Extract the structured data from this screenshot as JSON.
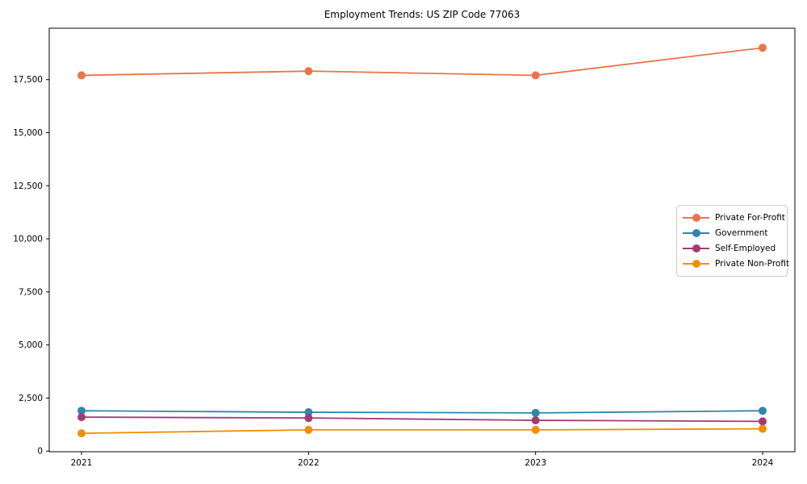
{
  "figure": {
    "background": "#ffffff",
    "axis_color": "#000000",
    "tick_label_color": "#000000"
  },
  "chart_data": {
    "type": "line",
    "title": "Employment Trends: US ZIP Code 77063",
    "categories": [
      "2021",
      "2022",
      "2023",
      "2024"
    ],
    "series": [
      {
        "name": "Private For-Profit",
        "color": "#E8764B",
        "values": [
          17700,
          17900,
          17700,
          19000
        ]
      },
      {
        "name": "Government",
        "color": "#2E86AB",
        "values": [
          1900,
          1830,
          1800,
          1900
        ]
      },
      {
        "name": "Self-Employed",
        "color": "#A23B72",
        "values": [
          1600,
          1560,
          1450,
          1400
        ]
      },
      {
        "name": "Private Non-Profit",
        "color": "#F18F01",
        "values": [
          840,
          1000,
          1000,
          1050
        ]
      }
    ],
    "xlabel": "",
    "ylabel": "",
    "ylim": [
      -30,
      19920
    ],
    "yticks": [
      0,
      2500,
      5000,
      7500,
      10000,
      12500,
      15000,
      17500
    ],
    "ytick_labels": [
      "0",
      "2,500",
      "5,000",
      "7,500",
      "10,000",
      "12,500",
      "15,000",
      "17,500"
    ],
    "grid": false,
    "legend_position": "center-right",
    "marker": "circle"
  }
}
